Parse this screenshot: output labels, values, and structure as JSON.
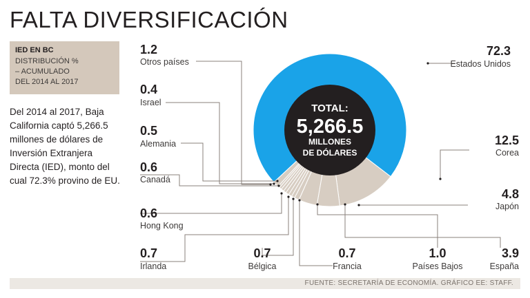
{
  "title": "FALTA DIVERSIFICACIÓN",
  "panel": {
    "kicker": "IED EN BC",
    "subtitle": "DISTRIBUCIÓN %\n– ACUMULADO\nDEL 2014 AL 2017"
  },
  "description": "Del 2014 al 2017, Baja California captó 5,266.5 millones de dólares de Inversión Extranjera Directa (IED), monto del cual 72.3% provino de EU.",
  "center": {
    "line1": "TOTAL:",
    "line2": "5,266.5",
    "line3": "MILLONES",
    "line4": "DE DÓLARES"
  },
  "source": "FUENTE: SECRETARÍA DE ECONOMÍA.   GRÁFICO EE: STAFF.",
  "colors": {
    "primary": "#1aa3e8",
    "other": "#d7cdc2",
    "separator": "#ffffff",
    "center": "#231f20",
    "leader": "#8a817b"
  },
  "chart_data": {
    "type": "pie",
    "total": 5266.5,
    "unit": "%",
    "slices": [
      {
        "label": "Estados Unidos",
        "value": 72.3
      },
      {
        "label": "Corea",
        "value": 12.5
      },
      {
        "label": "Japón",
        "value": 4.8
      },
      {
        "label": "España",
        "value": 3.9
      },
      {
        "label": "Países Bajos",
        "value": 1.0
      },
      {
        "label": "Francia",
        "value": 0.7
      },
      {
        "label": "Bélgica",
        "value": 0.7
      },
      {
        "label": "Irlanda",
        "value": 0.7
      },
      {
        "label": "Hong Kong",
        "value": 0.6
      },
      {
        "label": "Canadá",
        "value": 0.6
      },
      {
        "label": "Alemania",
        "value": 0.5
      },
      {
        "label": "Israel",
        "value": 0.4
      },
      {
        "label": "Otros países",
        "value": 1.2
      }
    ]
  }
}
